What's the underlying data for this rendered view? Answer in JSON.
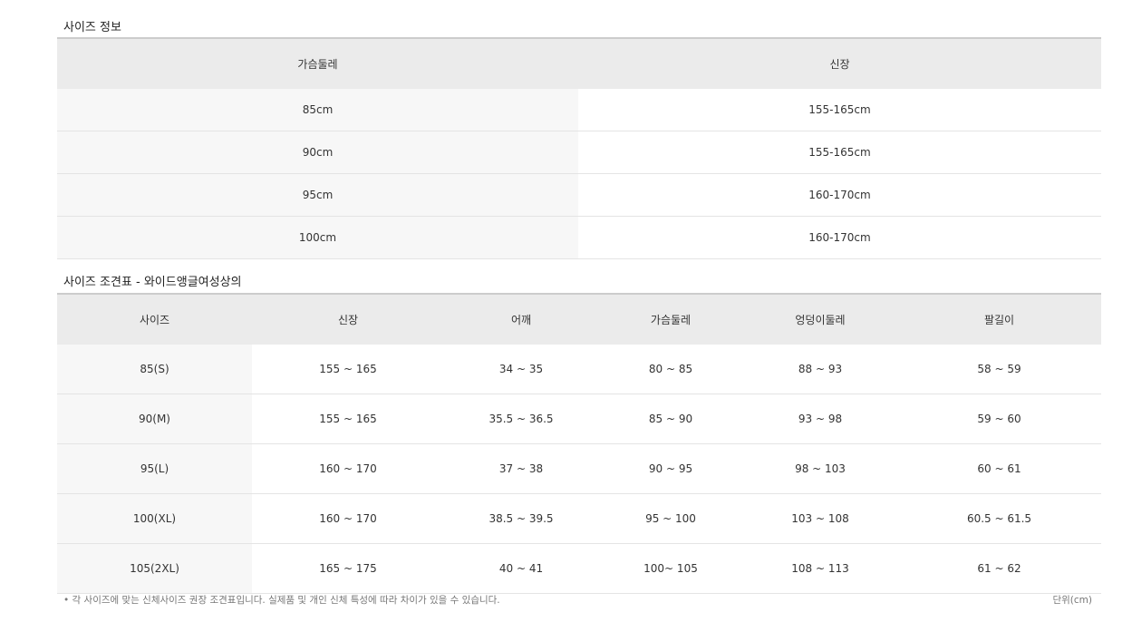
{
  "size_info": {
    "title": "사이즈 정보",
    "headers": [
      "가슴둘레",
      "신장"
    ],
    "rows": [
      [
        "85cm",
        "155-165cm"
      ],
      [
        "90cm",
        "155-165cm"
      ],
      [
        "95cm",
        "160-170cm"
      ],
      [
        "100cm",
        "160-170cm"
      ]
    ]
  },
  "size_chart": {
    "title": "사이즈 조견표 - 와이드앵글여성상의",
    "headers": [
      "사이즈",
      "신장",
      "어깨",
      "가슴둘레",
      "엉덩이둘레",
      "팔길이"
    ],
    "rows": [
      [
        "85(S)",
        "155 ~ 165",
        "34 ~ 35",
        "80 ~ 85",
        "88 ~ 93",
        "58 ~ 59"
      ],
      [
        "90(M)",
        "155 ~ 165",
        "35.5 ~ 36.5",
        "85 ~ 90",
        "93 ~ 98",
        "59 ~ 60"
      ],
      [
        "95(L)",
        "160 ~ 170",
        "37 ~ 38",
        "90 ~ 95",
        "98 ~ 103",
        "60 ~ 61"
      ],
      [
        "100(XL)",
        "160 ~ 170",
        "38.5 ~ 39.5",
        "95 ~ 100",
        "103 ~ 108",
        "60.5 ~ 61.5"
      ],
      [
        "105(2XL)",
        "165 ~ 175",
        "40 ~ 41",
        "100~ 105",
        "108 ~ 113",
        "61 ~ 62"
      ]
    ]
  },
  "footer": {
    "note": "• 각 사이즈에 맞는 신체사이즈 권장 조견표입니다. 실제품 및 개인 신체 특성에 따라 차이가 있을 수 있습니다.",
    "unit": "단위(cm)"
  }
}
